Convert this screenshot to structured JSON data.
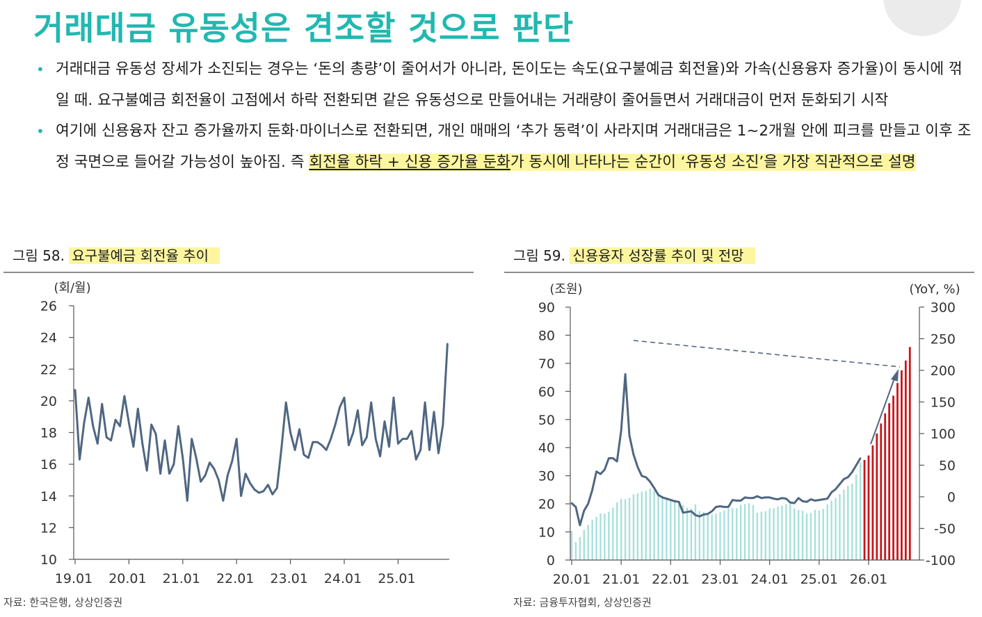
{
  "page_title": "거래대금 유동성은 견조할 것으로 판단",
  "bullets": [
    {
      "segments": [
        {
          "text": "거래대금 유동성 장세가 소진되는 경우는 ‘돈의 총량’이 줄어서가 아니라, 돈이도는 속도(요구불예금 회전율)와 가속(신용융자 증가율)이 동시에 꺾일 때. 요구불예금 회전율이 고점에서 하락 전환되면 같은 유동성으로 만들어내는 거래량이 줄어들면서 거래대금이 먼저 둔화되기 시작",
          "style": "plain"
        }
      ]
    },
    {
      "segments": [
        {
          "text": "여기에 신용융자 잔고 증가율까지 둔화·마이너스로 전환되면, 개인 매매의 ‘추가 동력’이 사라지며 거래대금은 1~2개월 안에 피크를 만들고 이후 조정 국면으로 들어갈 가능성이 높아짐. 즉 ",
          "style": "plain"
        },
        {
          "text": "회전율 하락 + 신용 증가율 둔화",
          "style": "highlight-underline"
        },
        {
          "text": "가 동시에 나타나는 순간이 ‘유동성 소진’을 가장 직관적으로 설명",
          "style": "highlight"
        }
      ]
    }
  ],
  "figures": {
    "left": {
      "number": "그림 58.",
      "title": "요구불예금 회전율 추이",
      "source": "자료: 한국은행, 상상인증권"
    },
    "right": {
      "number": "그림 59.",
      "title": "신용융자 성장률 추이 및 전망",
      "source": "자료: 금융투자협회, 상상인증권"
    }
  },
  "colors": {
    "accent": "#21b8b0",
    "highlight": "#fdf6a0",
    "line": "#4f6682",
    "bar_actual": "#a8e0db",
    "bar_forecast": "#c8151b"
  },
  "chart_data": [
    {
      "type": "line",
      "unit_label": "(회/월)",
      "ylim": [
        10,
        26
      ],
      "yticks": [
        10,
        12,
        14,
        16,
        18,
        20,
        22,
        24,
        26
      ],
      "xticks": [
        "19.01",
        "20.01",
        "21.01",
        "22.01",
        "23.01",
        "24.01",
        "25.01"
      ],
      "x_start": "2019-01",
      "series": [
        {
          "name": "",
          "values": [
            20.7,
            16.3,
            18.6,
            20.2,
            18.4,
            17.3,
            19.8,
            17.7,
            17.5,
            18.8,
            18.4,
            20.3,
            18.6,
            17.1,
            19.5,
            17.3,
            15.6,
            18.5,
            17.9,
            15.4,
            17.5,
            15.4,
            16.0,
            18.4,
            16.4,
            13.7,
            17.6,
            16.4,
            14.9,
            15.3,
            16.1,
            15.7,
            15.0,
            13.7,
            15.3,
            16.2,
            17.6,
            14.0,
            15.4,
            14.8,
            14.4,
            14.2,
            14.3,
            14.7,
            14.1,
            14.5,
            17.0,
            19.9,
            18.0,
            16.9,
            18.2,
            16.6,
            16.4,
            17.4,
            17.4,
            17.2,
            16.9,
            17.6,
            18.5,
            19.6,
            20.2,
            17.2,
            18.0,
            19.4,
            17.2,
            17.7,
            19.9,
            17.6,
            16.5,
            18.7,
            17.1,
            20.2,
            17.3,
            17.6,
            17.6,
            18.1,
            16.3,
            16.9,
            19.9,
            16.9,
            19.3,
            16.7,
            18.5,
            23.6
          ]
        }
      ]
    },
    {
      "type": "bar",
      "left_unit_label": "(조원)",
      "right_unit_label": "(YoY, %)",
      "y_left_lim": [
        0,
        90
      ],
      "y_left_ticks": [
        0,
        10,
        20,
        30,
        40,
        50,
        60,
        70,
        80,
        90
      ],
      "y_right_lim": [
        -100,
        300
      ],
      "y_right_ticks": [
        -100,
        -50,
        0,
        50,
        100,
        150,
        200,
        250,
        300
      ],
      "xticks": [
        "20.01",
        "21.01",
        "22.01",
        "23.01",
        "24.01",
        "25.01",
        "26.01"
      ],
      "x_start": "2020-01",
      "series": [
        {
          "name": "",
          "axis": "left",
          "values": [
            10.3,
            6.4,
            8.2,
            10.7,
            12.5,
            14.3,
            15.4,
            16.6,
            16.5,
            17.2,
            18.6,
            20.5,
            21.8,
            21.7,
            22.1,
            23.4,
            23.8,
            24.3,
            24.6,
            25.4,
            24.7,
            24.1,
            22.9,
            21.5,
            21.8,
            21.4,
            20.8,
            19.6,
            18.7,
            18.3,
            19.8,
            17.4,
            17.1,
            16.3,
            16.2,
            16.5,
            17.0,
            17.6,
            18.3,
            18.5,
            18.5,
            19.6,
            19.9,
            20.2,
            19.6,
            16.8,
            17.2,
            17.4,
            18.3,
            18.4,
            19.1,
            19.4,
            19.9,
            20.2,
            18.4,
            17.8,
            17.6,
            16.5,
            16.7,
            17.9,
            17.6,
            18.2,
            19.8,
            21.2,
            22.0,
            23.5,
            25.1,
            26.4,
            27.2,
            30.4,
            34.8
          ]
        },
        {
          "name": "",
          "axis": "left",
          "forecast": true,
          "values": [
            35.6,
            37.2,
            40.8,
            45.0,
            48.6,
            52.2,
            55.8,
            58.5,
            63.0,
            67.5,
            71.0,
            75.8
          ]
        },
        {
          "name": "",
          "axis": "right",
          "values": [
            -10,
            -16,
            -45,
            -22,
            -11,
            11,
            40,
            36,
            43,
            61,
            61,
            56,
            105,
            194,
            97,
            67,
            47,
            33,
            31,
            24,
            14,
            3,
            -1,
            -3,
            -5,
            -7,
            -8,
            -25,
            -24,
            -23,
            -29,
            -31,
            -28,
            -27,
            -23,
            -16,
            -15,
            -16,
            -16,
            -5,
            -6,
            -6,
            -1,
            -2,
            -2,
            1,
            -2,
            -1,
            -1,
            -3,
            -4,
            -2,
            -3,
            -9,
            -10,
            -2,
            -7,
            -8,
            -4,
            -6,
            -5,
            -4,
            -3,
            7,
            12,
            20,
            28,
            31,
            39,
            50,
            61
          ]
        }
      ],
      "annotations": [
        "dashed-trend-line",
        "arrow-up"
      ]
    }
  ]
}
